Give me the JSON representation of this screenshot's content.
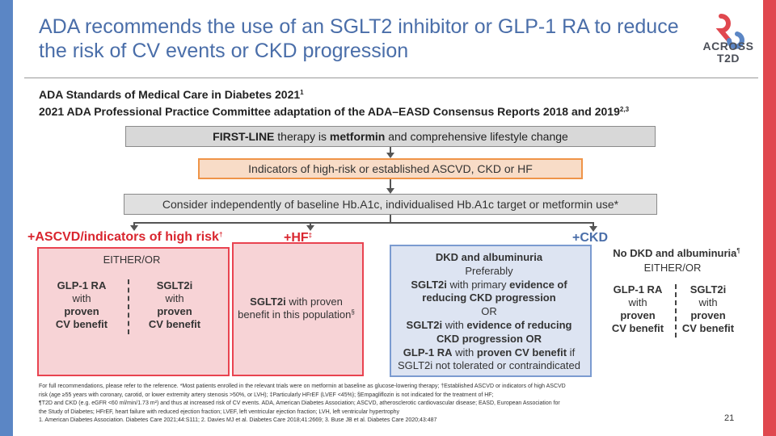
{
  "title": "ADA recommends the use of an SGLT2 inhibitor or GLP-1 RA to reduce the risk of CV events or CKD progression",
  "logo": {
    "line1": "ACROSS",
    "line2": "T2D",
    "colors": {
      "red": "#e0484f",
      "blue": "#5b86c5"
    }
  },
  "heading": {
    "main": "ADA Standards of Medical Care in Diabetes 2021",
    "main_ref": "1",
    "sub": "2021 ADA Professional Practice Committee adaptation of the ADA–EASD Consensus Reports 2018 and 2019",
    "sub_ref": "2,3"
  },
  "flow": {
    "first_line": {
      "a": "FIRST-LINE",
      "b": " therapy is ",
      "c": "metformin",
      "d": " and comprehensive lifestyle change"
    },
    "indicators": "Indicators of high-risk or established ASCVD, CKD or HF",
    "consider": "Consider independently of baseline Hb.A1c, individualised Hb.A1c target or metformin use*"
  },
  "ascvd": {
    "label": "+ASCVD/indicators of high risk",
    "label_ref": "†",
    "either_or": "EITHER/OR",
    "opt1": {
      "drug": "GLP-1 RA",
      "l1": "with",
      "l2": "proven",
      "l3": "CV benefit"
    },
    "opt2": {
      "drug": "SGLT2i",
      "l1": "with",
      "l2": "proven",
      "l3": "CV benefit"
    }
  },
  "hf": {
    "label": "+HF",
    "label_ref": "‡",
    "drug": "SGLT2i",
    "text1": " with proven",
    "text2": "benefit in this population",
    "ref": "§"
  },
  "ckd": {
    "label": "+CKD",
    "alb": {
      "title": "DKD and albuminuria",
      "pref": "Preferably",
      "l1_drug": "SGLT2i",
      "l1_a": " with primary ",
      "l1_b": "evidence of",
      "l2": "reducing CKD progression",
      "or1": "OR",
      "l3_drug": "SGLT2i",
      "l3_a": " with ",
      "l3_b": "evidence of reducing",
      "l4": "CKD progression OR",
      "l5_drug": "GLP-1 RA",
      "l5_a": " with ",
      "l5_b": "proven CV benefit",
      "l5_c": " if",
      "l6": "SGLT2i not tolerated or contraindicated"
    },
    "noalb": {
      "title": "No DKD and albuminuria",
      "ref": "¶",
      "either_or": "EITHER/OR",
      "opt1": {
        "drug": "GLP-1 RA",
        "l1": "with",
        "l2": "proven",
        "l3": "CV benefit"
      },
      "opt2": {
        "drug": "SGLT2i",
        "l1": "with",
        "l2": "proven",
        "l3": "CV benefit"
      }
    }
  },
  "footnotes": {
    "l1": "For full recommendations, please refer to the reference. *Most patients enrolled in the relevant trials were on metformin at baseline as glucose-lowering therapy; †Established ASCVD or indicators of high ASCVD",
    "l2": "risk (age ≥55 years with coronary, carotid, or lower extremity artery stenosis >50%, or LVH); ‡Particularly HFrEF (LVEF <45%); §Empagliflozin is not indicated for the treatment of HF;",
    "l3": "¶T2D and CKD (e.g. eGFR <60 ml/min/1.73 m²) and thus at increased risk of CV events. ADA, American Diabetes Association; ASCVD, atherosclerotic cardiovascular disease; EASD, European Association for",
    "l4": "the Study of Diabetes; HFrEF, heart failure with reduced ejection fraction; LVEF, left ventricular ejection fraction; LVH, left ventricular hypertrophy",
    "l5": "1. American Diabetes Association. Diabetes Care 2021;44:S111; 2. Davies MJ et al. Diabetes Care 2018;41:2669; 3. Buse JB et al. Diabetes Care 2020;43:487"
  },
  "page_number": "21"
}
